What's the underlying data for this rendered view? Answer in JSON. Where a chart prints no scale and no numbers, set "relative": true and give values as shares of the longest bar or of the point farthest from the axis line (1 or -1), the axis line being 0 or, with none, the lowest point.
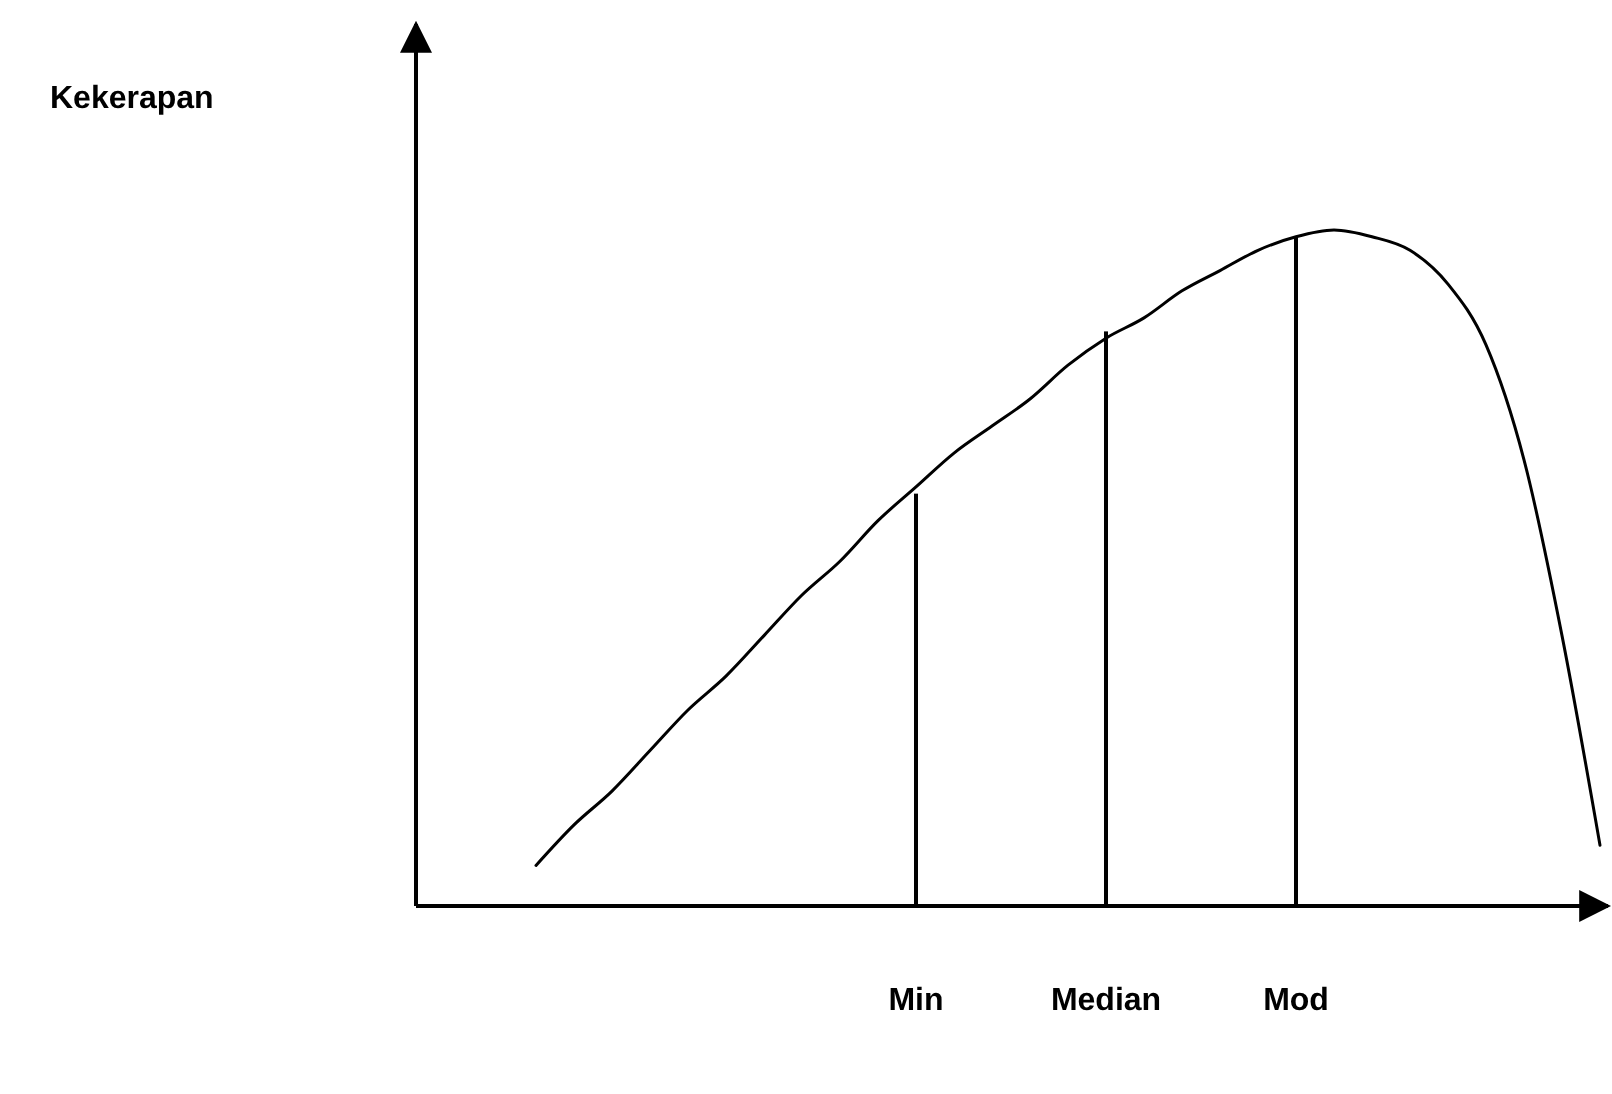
{
  "chart_data": {
    "type": "line",
    "relative": true,
    "annotations": [
      "Kekerapan"
    ],
    "tick_labels": "x",
    "categories": [
      null,
      null,
      null,
      null,
      null,
      null,
      null,
      null,
      null,
      null,
      "Min",
      null,
      null,
      null,
      null,
      "Median",
      null,
      null,
      null,
      null,
      "Mod",
      null,
      null,
      null,
      null,
      null,
      null,
      null,
      null
    ],
    "series": [
      {
        "color": "#000000",
        "values": [
          0.06,
          0.12,
          0.17,
          0.23,
          0.29,
          0.34,
          0.4,
          0.46,
          0.51,
          0.57,
          0.62,
          0.67,
          0.71,
          0.75,
          0.8,
          0.84,
          0.87,
          0.91,
          0.94,
          0.97,
          0.99,
          1.0,
          0.99,
          0.97,
          0.92,
          0.83,
          0.66,
          0.4,
          0.09
        ]
      },
      {
        "type": "bar",
        "color": "#000000",
        "values": [
          null,
          null,
          null,
          null,
          null,
          null,
          null,
          null,
          null,
          null,
          0.61,
          null,
          null,
          null,
          null,
          0.85,
          null,
          null,
          null,
          null,
          0.99,
          null,
          null,
          null,
          null,
          null,
          null,
          null,
          null
        ]
      }
    ]
  }
}
